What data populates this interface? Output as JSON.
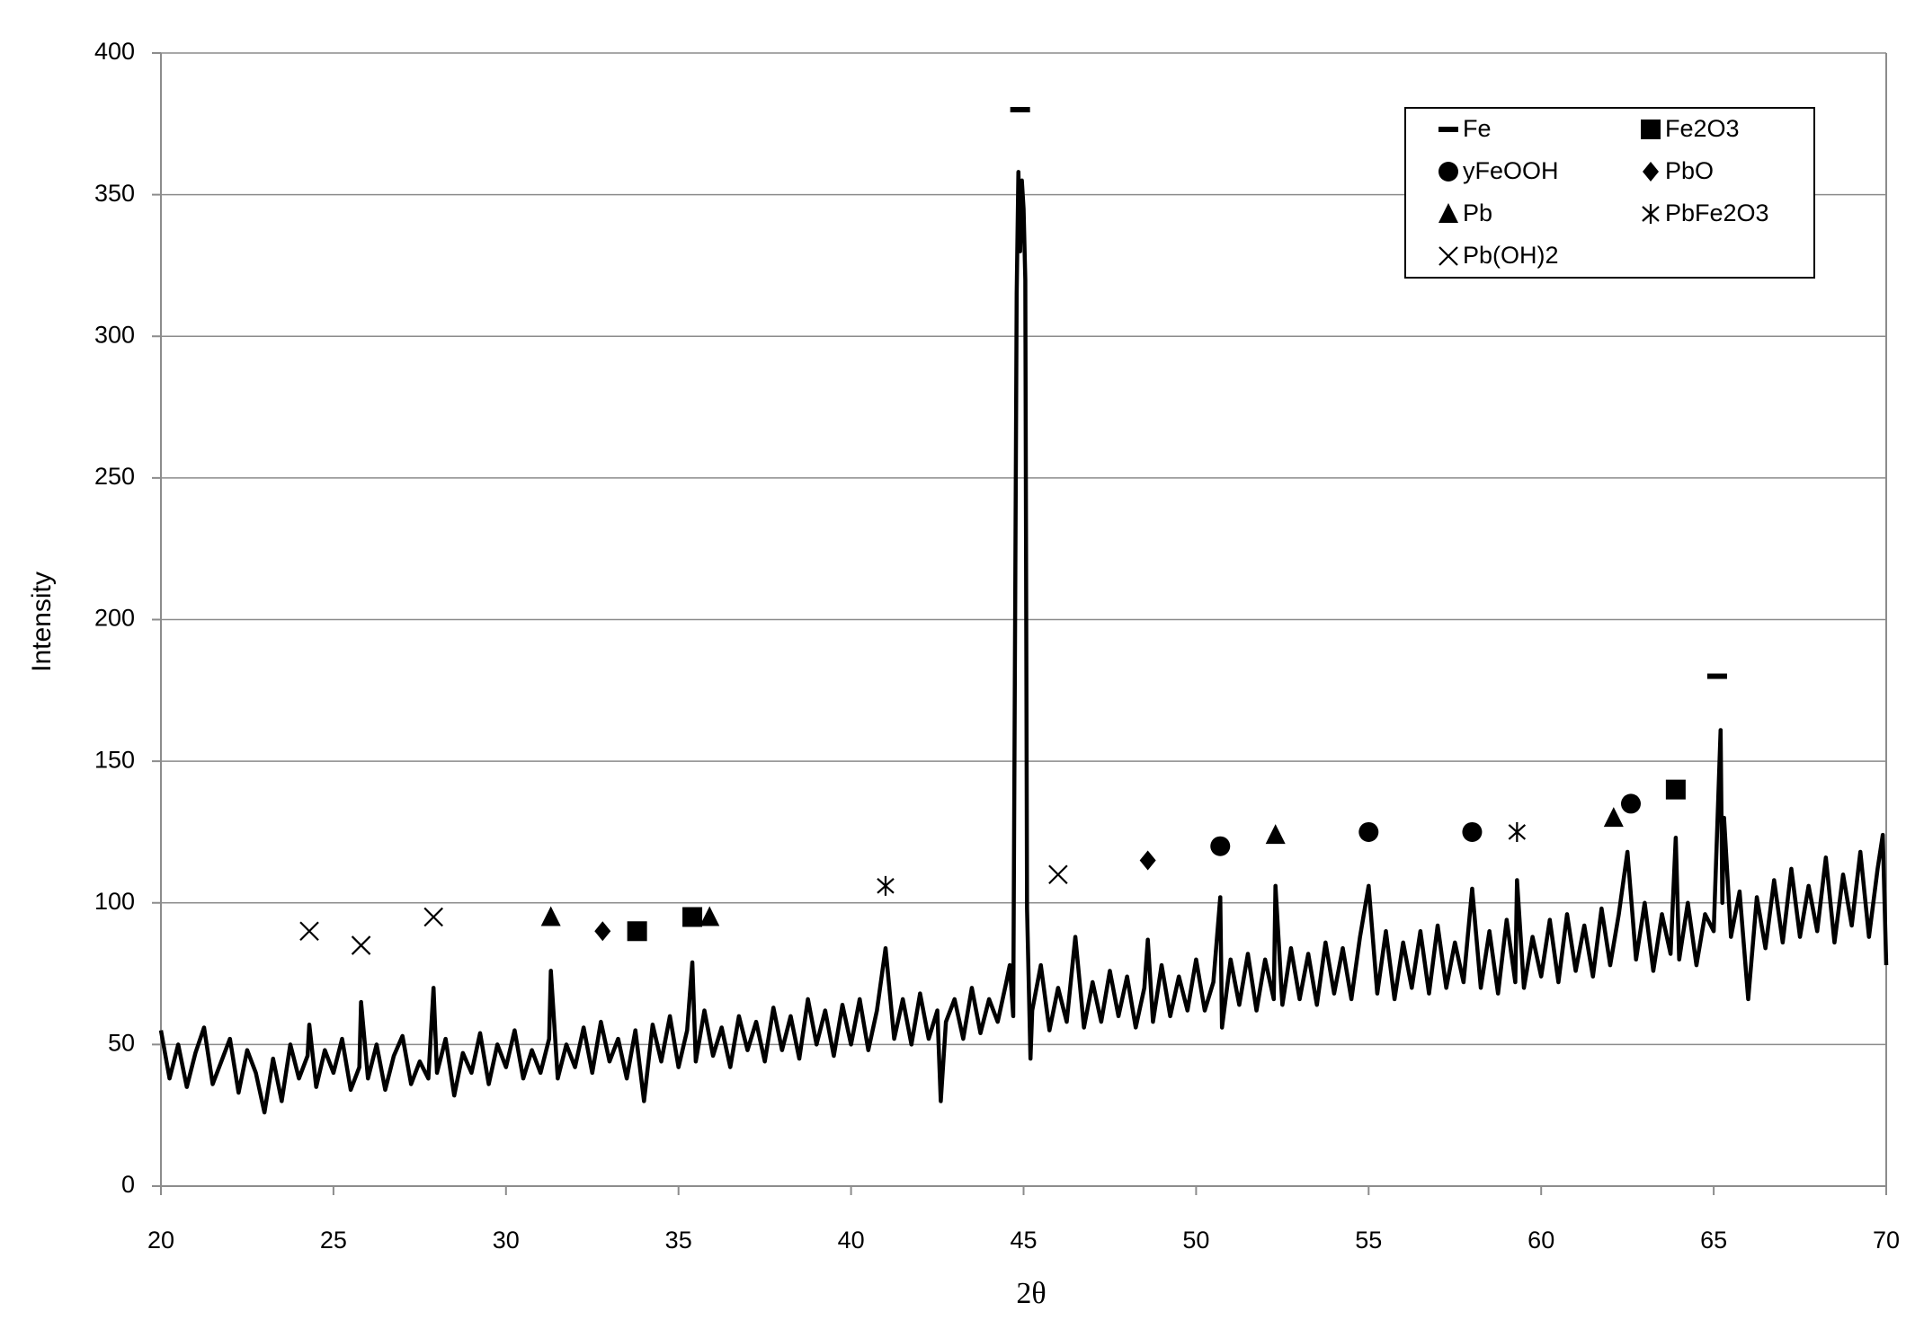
{
  "chart_data": {
    "type": "line",
    "x_label": "2θ",
    "y_label": "Intensity",
    "xlim": [
      20,
      70
    ],
    "xticks": [
      20,
      25,
      30,
      35,
      40,
      45,
      50,
      55,
      60,
      65,
      70
    ],
    "ylim": [
      0,
      400
    ],
    "yticks": [
      0,
      50,
      100,
      150,
      200,
      250,
      300,
      350,
      400
    ],
    "grid": true,
    "legend": "upper right",
    "series": [
      {
        "color": "#000000",
        "x": [
          20.0,
          20.25,
          20.5,
          20.75,
          21.0,
          21.25,
          21.5,
          21.75,
          22.0,
          22.25,
          22.5,
          22.75,
          23.0,
          23.25,
          23.5,
          23.75,
          24.0,
          24.25,
          24.3,
          24.5,
          24.75,
          25.0,
          25.25,
          25.5,
          25.75,
          25.8,
          26.0,
          26.25,
          26.5,
          26.75,
          27.0,
          27.25,
          27.5,
          27.75,
          27.9,
          28.0,
          28.25,
          28.5,
          28.75,
          29.0,
          29.25,
          29.5,
          29.75,
          30.0,
          30.25,
          30.5,
          30.75,
          31.0,
          31.25,
          31.3,
          31.5,
          31.75,
          32.0,
          32.25,
          32.5,
          32.75,
          33.0,
          33.25,
          33.5,
          33.75,
          34.0,
          34.25,
          34.5,
          34.75,
          35.0,
          35.25,
          35.4,
          35.5,
          35.75,
          36.0,
          36.25,
          36.5,
          36.75,
          37.0,
          37.25,
          37.5,
          37.75,
          38.0,
          38.25,
          38.5,
          38.75,
          39.0,
          39.25,
          39.5,
          39.75,
          40.0,
          40.25,
          40.5,
          40.75,
          41.0,
          41.25,
          41.5,
          41.75,
          42.0,
          42.25,
          42.5,
          42.6,
          42.75,
          43.0,
          43.25,
          43.5,
          43.75,
          44.0,
          44.25,
          44.5,
          44.6,
          44.7,
          44.8,
          44.85,
          44.9,
          44.95,
          45.0,
          45.05,
          45.1,
          45.2,
          45.25,
          45.5,
          45.75,
          46.0,
          46.25,
          46.5,
          46.75,
          47.0,
          47.25,
          47.5,
          47.75,
          48.0,
          48.25,
          48.5,
          48.6,
          48.75,
          49.0,
          49.25,
          49.5,
          49.75,
          50.0,
          50.25,
          50.5,
          50.7,
          50.75,
          51.0,
          51.25,
          51.5,
          51.75,
          52.0,
          52.25,
          52.3,
          52.5,
          52.75,
          53.0,
          53.25,
          53.5,
          53.75,
          54.0,
          54.25,
          54.5,
          54.75,
          55.0,
          55.25,
          55.5,
          55.75,
          56.0,
          56.25,
          56.5,
          56.75,
          57.0,
          57.25,
          57.5,
          57.75,
          58.0,
          58.25,
          58.5,
          58.75,
          59.0,
          59.25,
          59.3,
          59.5,
          59.75,
          60.0,
          60.25,
          60.5,
          60.75,
          61.0,
          61.25,
          61.5,
          61.75,
          62.0,
          62.25,
          62.5,
          62.75,
          63.0,
          63.25,
          63.5,
          63.75,
          63.9,
          64.0,
          64.25,
          64.5,
          64.75,
          65.0,
          65.2,
          65.25,
          65.3,
          65.5,
          65.75,
          66.0,
          66.25,
          66.5,
          66.75,
          67.0,
          67.25,
          67.5,
          67.75,
          68.0,
          68.25,
          68.5,
          68.75,
          69.0,
          69.25,
          69.5,
          69.75,
          69.9,
          70.0
        ],
        "values": [
          55,
          38,
          50,
          35,
          47,
          56,
          36,
          44,
          52,
          33,
          48,
          40,
          26,
          45,
          30,
          50,
          38,
          46,
          57,
          35,
          48,
          40,
          52,
          34,
          42,
          65,
          38,
          50,
          34,
          46,
          53,
          36,
          44,
          38,
          70,
          40,
          52,
          32,
          47,
          40,
          54,
          36,
          50,
          42,
          55,
          38,
          48,
          40,
          52,
          76,
          38,
          50,
          42,
          56,
          40,
          58,
          44,
          52,
          38,
          55,
          30,
          57,
          44,
          60,
          42,
          55,
          79,
          44,
          62,
          46,
          56,
          42,
          60,
          48,
          58,
          44,
          63,
          48,
          60,
          45,
          66,
          50,
          62,
          46,
          64,
          50,
          66,
          48,
          62,
          84,
          52,
          66,
          50,
          68,
          52,
          62,
          30,
          58,
          66,
          52,
          70,
          54,
          66,
          58,
          72,
          78,
          60,
          315,
          358,
          330,
          355,
          345,
          320,
          98,
          45,
          62,
          78,
          55,
          70,
          58,
          88,
          56,
          72,
          58,
          76,
          60,
          74,
          56,
          70,
          87,
          58,
          78,
          60,
          74,
          62,
          80,
          62,
          72,
          102,
          56,
          80,
          64,
          82,
          62,
          80,
          66,
          106,
          64,
          84,
          66,
          82,
          64,
          86,
          68,
          84,
          66,
          88,
          106,
          68,
          90,
          66,
          86,
          70,
          90,
          68,
          92,
          70,
          86,
          72,
          105,
          70,
          90,
          68,
          94,
          72,
          108,
          70,
          88,
          74,
          94,
          72,
          96,
          76,
          92,
          74,
          98,
          78,
          96,
          118,
          80,
          100,
          76,
          96,
          82,
          123,
          80,
          100,
          78,
          96,
          90,
          161,
          100,
          130,
          88,
          104,
          66,
          102,
          84,
          108,
          86,
          112,
          88,
          106,
          90,
          116,
          86,
          110,
          92,
          118,
          88,
          112,
          124,
          78
        ]
      },
      {
        "name": "Fe",
        "color": "#000000",
        "marker": "dash",
        "x": [
          44.9,
          65.1
        ],
        "values": [
          380,
          180
        ]
      },
      {
        "name": "Fe2O3",
        "color": "#000000",
        "marker": "square",
        "x": [
          33.8,
          35.4,
          63.9
        ],
        "values": [
          90,
          95,
          140
        ]
      },
      {
        "name": "yFeOOH",
        "color": "#000000",
        "marker": "circle",
        "x": [
          50.7,
          55.0,
          58.0,
          62.6
        ],
        "values": [
          120,
          125,
          125,
          135
        ]
      },
      {
        "name": "PbO",
        "color": "#000000",
        "marker": "diamond",
        "x": [
          32.8,
          48.6
        ],
        "values": [
          90,
          115
        ]
      },
      {
        "name": "Pb",
        "color": "#000000",
        "marker": "triangle",
        "x": [
          31.3,
          35.9,
          52.3,
          62.1
        ],
        "values": [
          95,
          95,
          124,
          130
        ]
      },
      {
        "name": "PbFe2O3",
        "color": "#000000",
        "marker": "asterisk",
        "x": [
          41.0,
          59.3
        ],
        "values": [
          106,
          125
        ]
      },
      {
        "name": "Pb(OH)2",
        "color": "#000000",
        "marker": "cross",
        "x": [
          24.3,
          25.8,
          27.9,
          46.0
        ],
        "values": [
          90,
          85,
          95,
          110
        ]
      }
    ]
  }
}
